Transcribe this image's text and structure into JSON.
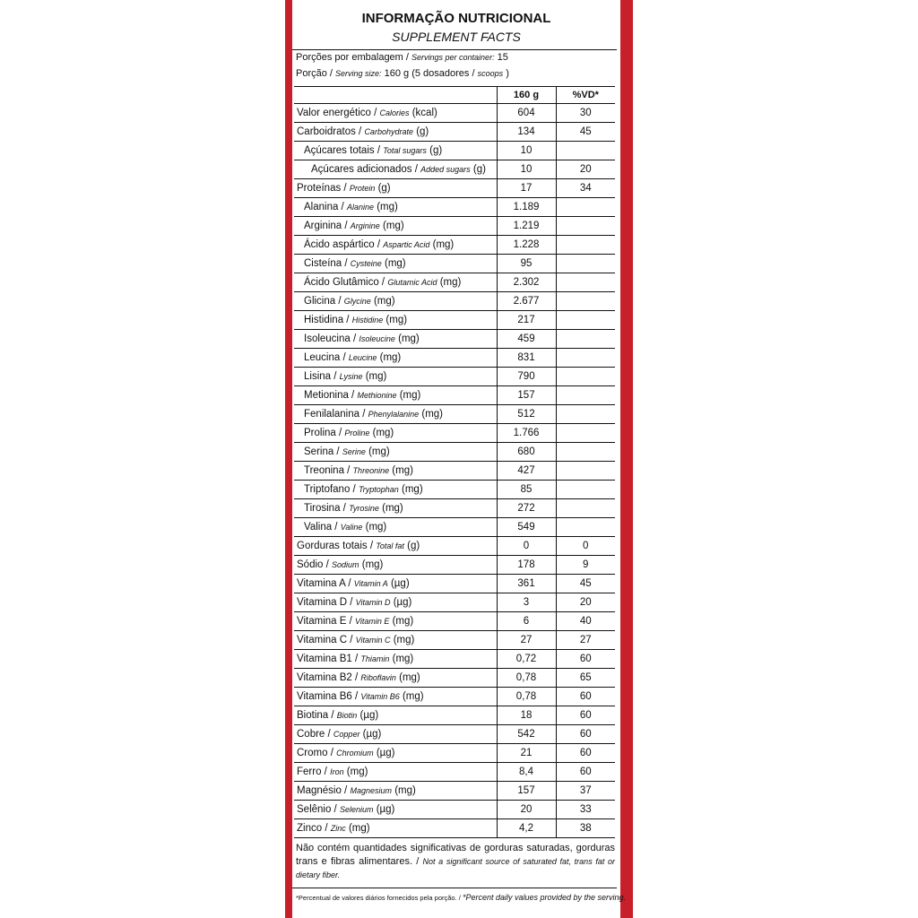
{
  "header": {
    "title": "INFORMAÇÃO NUTRICIONAL",
    "subtitle": "SUPPLEMENT FACTS"
  },
  "servings": [
    [
      "Porções por embalagem /",
      "Servings per container:",
      "15"
    ],
    [
      "Porção /",
      "Serving size:",
      "160 g (5 dosadores /",
      "scoops",
      ")"
    ]
  ],
  "table": {
    "columns": [
      "160 g",
      "%VD*"
    ],
    "rows": [
      {
        "label": [
          "Valor energético /",
          "Calories",
          "(kcal)"
        ],
        "amount": "604",
        "vd": "30"
      },
      {
        "label": [
          "Carboidratos /",
          "Carbohydrate",
          "(g)"
        ],
        "amount": "134",
        "vd": "45",
        "subrows": [
          {
            "label": [
              "Açúcares totais /",
              "Total sugars",
              "(g)"
            ],
            "amount": "10",
            "subrows": [
              {
                "label": [
                  "Açúcares adicionados /",
                  "Added sugars",
                  "(g)"
                ],
                "amount": "10",
                "vd": "20"
              }
            ]
          }
        ]
      },
      {
        "label": [
          "Proteínas /",
          "Protein",
          "(g)"
        ],
        "amount": "17",
        "vd": "34",
        "subrows": [
          {
            "label": [
              "Alanina /",
              "Alanine",
              "(mg)"
            ],
            "amount": "1.189"
          },
          {
            "label": [
              "Arginina /",
              "Arginine",
              "(mg)"
            ],
            "amount": "1.219"
          },
          {
            "label": [
              "Ácido aspártico /",
              "Aspartic Acid",
              "(mg)"
            ],
            "amount": "1.228"
          },
          {
            "label": [
              "Cisteína /",
              "Cysteine",
              "(mg)"
            ],
            "amount": "95"
          },
          {
            "label": [
              "Ácido Glutâmico /",
              "Glutamic Acid",
              "(mg)"
            ],
            "amount": "2.302"
          },
          {
            "label": [
              "Glicina /",
              "Glycine",
              "(mg)"
            ],
            "amount": "2.677"
          },
          {
            "label": [
              "Histidina /",
              "Histidine",
              "(mg)"
            ],
            "amount": "217"
          },
          {
            "label": [
              "Isoleucina /",
              "Isoleucine",
              "(mg)"
            ],
            "amount": "459"
          },
          {
            "label": [
              "Leucina /",
              "Leucine",
              "(mg)"
            ],
            "amount": "831"
          },
          {
            "label": [
              "Lisina /",
              "Lysine",
              "(mg)"
            ],
            "amount": "790"
          },
          {
            "label": [
              "Metionina /",
              "Methionine",
              "(mg)"
            ],
            "amount": "157"
          },
          {
            "label": [
              "Fenilalanina /",
              "Phenylalanine",
              "(mg)"
            ],
            "amount": "512"
          },
          {
            "label": [
              "Prolina /",
              "Proline",
              "(mg)"
            ],
            "amount": "1.766"
          },
          {
            "label": [
              "Serina /",
              "Serine",
              "(mg)"
            ],
            "amount": "680"
          },
          {
            "label": [
              "Treonina /",
              "Threonine",
              "(mg)"
            ],
            "amount": "427"
          },
          {
            "label": [
              "Triptofano /",
              "Tryptophan",
              "(mg)"
            ],
            "amount": "85"
          },
          {
            "label": [
              "Tirosina /",
              "Tyrosine",
              "(mg)"
            ],
            "amount": "272"
          },
          {
            "label": [
              "Valina /",
              "Valine",
              "(mg)"
            ],
            "amount": "549"
          }
        ]
      },
      {
        "label": [
          "Gorduras totais /",
          "Total fat",
          "(g)"
        ],
        "amount": "0",
        "vd": "0"
      },
      {
        "label": [
          "Sódio /",
          "Sodium",
          "(mg)"
        ],
        "amount": "178",
        "vd": "9"
      },
      {
        "label": [
          "Vitamina A /",
          "Vitamin A",
          "(µg)"
        ],
        "amount": "361",
        "vd": "45"
      },
      {
        "label": [
          "Vitamina D /",
          "Vitamin D",
          "(µg)"
        ],
        "amount": "3",
        "vd": "20"
      },
      {
        "label": [
          "Vitamina E /",
          "Vitamin E",
          "(mg)"
        ],
        "amount": "6",
        "vd": "40"
      },
      {
        "label": [
          "Vitamina C /",
          "Vitamin C",
          "(mg)"
        ],
        "amount": "27",
        "vd": "27"
      },
      {
        "label": [
          "Vitamina B1 /",
          "Thiamin",
          "(mg)"
        ],
        "amount": "0,72",
        "vd": "60"
      },
      {
        "label": [
          "Vitamina B2 /",
          "Riboflavin",
          "(mg)"
        ],
        "amount": "0,78",
        "vd": "65"
      },
      {
        "label": [
          "Vitamina B6 /",
          "Vitamin B6",
          "(mg)"
        ],
        "amount": "0,78",
        "vd": "60"
      },
      {
        "label": [
          "Biotina /",
          "Biotin",
          "(µg)"
        ],
        "amount": "18",
        "vd": "60"
      },
      {
        "label": [
          "Cobre /",
          "Copper",
          "(µg)"
        ],
        "amount": "542",
        "vd": "60"
      },
      {
        "label": [
          "Cromo /",
          "Chromium",
          "(µg)"
        ],
        "amount": "21",
        "vd": "60"
      },
      {
        "label": [
          "Ferro /",
          "Iron",
          "(mg)"
        ],
        "amount": "8,4",
        "vd": "60"
      },
      {
        "label": [
          "Magnésio /",
          "Magnesium",
          "(mg)"
        ],
        "amount": "157",
        "vd": "37"
      },
      {
        "label": [
          "Selênio /",
          "Selenium",
          "(µg)"
        ],
        "amount": "20",
        "vd": "33"
      },
      {
        "label": [
          "Zinco /",
          "Zinc",
          "(mg)"
        ],
        "amount": "4,2",
        "vd": "38"
      }
    ]
  },
  "notes": [
    [
      "Não contém quantidades significativas de gorduras saturadas, gorduras trans e fibras alimentares. /",
      "Not a significant source of saturated fat, trans fat or dietary fiber."
    ],
    [
      "*Percentual de valores diários fornecidos pela porção. /",
      "*Percent daily values provided by the serving."
    ]
  ]
}
